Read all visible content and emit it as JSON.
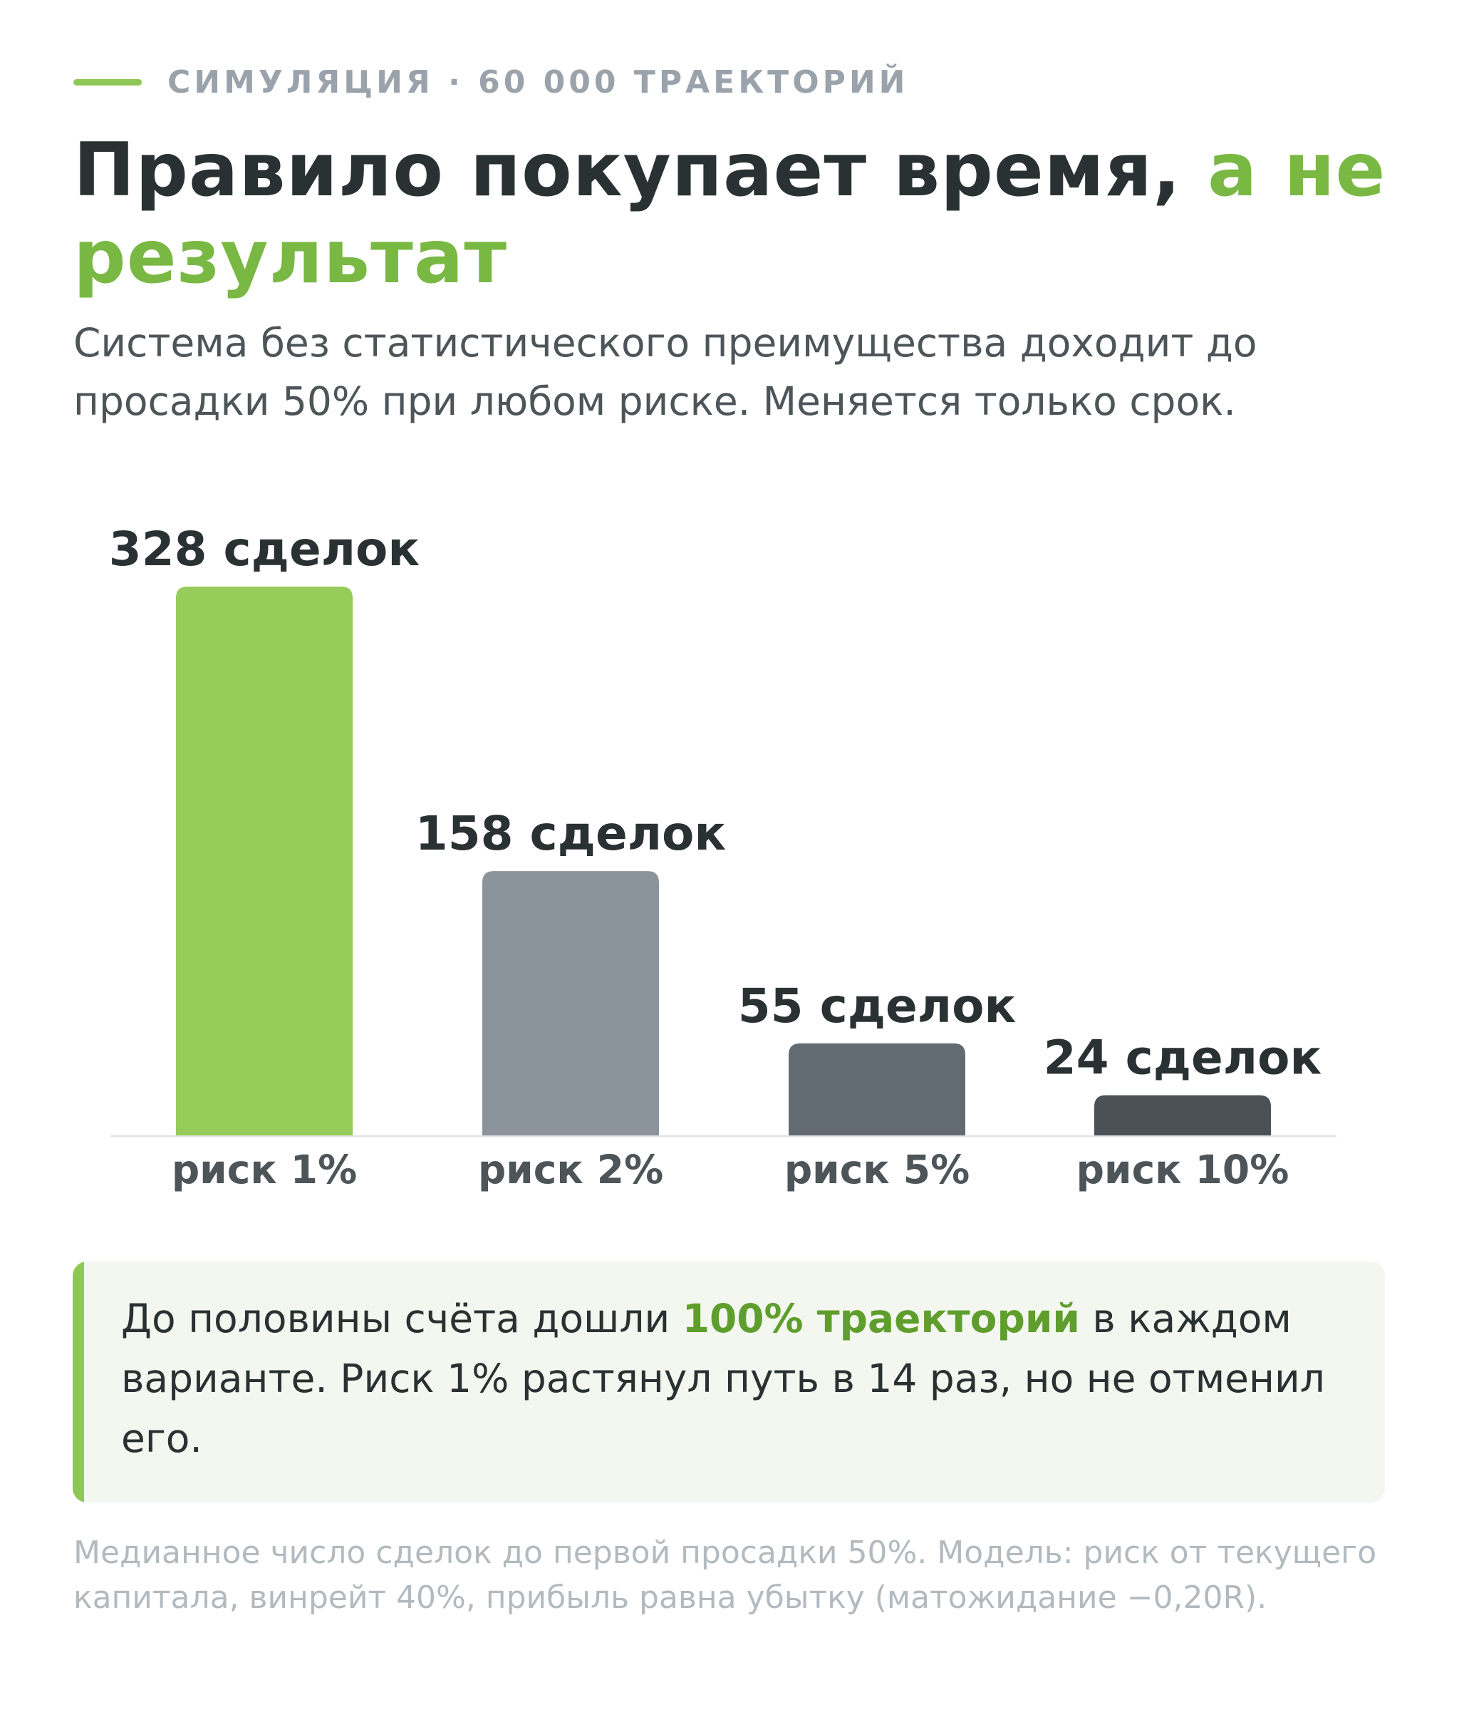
{
  "eyebrow": {
    "text": "СИМУЛЯЦИЯ · 60 000 ТРАЕКТОРИЙ",
    "accent_color": "#8fc756"
  },
  "headline": {
    "main": "Правило покупает время, ",
    "accent": "а не результат"
  },
  "subtitle": "Система без статистического преимущества доходит до просадки 50% при любом риске. Меняется только срок.",
  "chart_data": {
    "type": "bar",
    "categories": [
      "риск 1%",
      "риск 2%",
      "риск 5%",
      "риск 10%"
    ],
    "values": [
      328,
      158,
      55,
      24
    ],
    "value_labels": [
      "328 сделок",
      "158 сделок",
      "55 сделок",
      "24 сделок"
    ],
    "bar_colors": [
      "#95cc5a",
      "#8b939b",
      "#626b72",
      "#4a5157"
    ],
    "ylim": [
      0,
      328
    ],
    "grid": false,
    "legend": "none"
  },
  "callout": {
    "before": "До половины счёта дошли ",
    "highlight": "100% траекторий",
    "after": " в каждом варианте. Риск 1% растянул путь в 14 раз, но не отменил его.",
    "accent_color": "#8fc756"
  },
  "footnote": "Медианное число сделок до первой просадки 50%. Модель: риск от текущего капитала, винрейт 40%, прибыль равна убытку (матожидание −0,20R)."
}
